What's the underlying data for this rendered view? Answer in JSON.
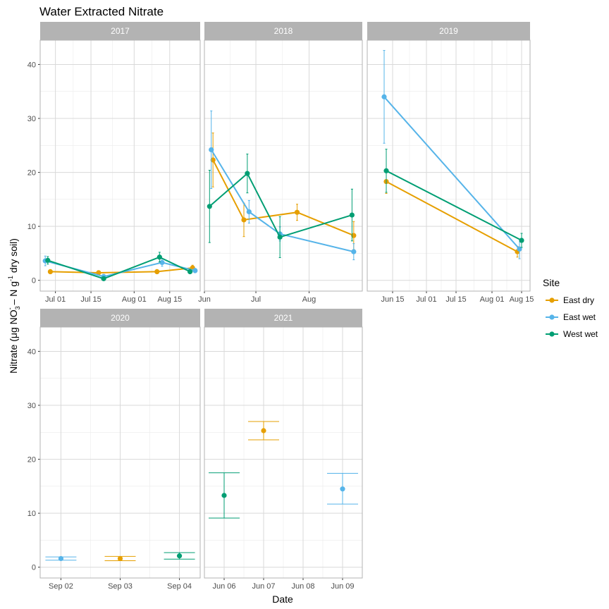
{
  "chart_data": {
    "type": "line",
    "title": "Water Extracted Nitrate",
    "xlabel": "Date",
    "ylabel": {
      "prefix": "Nitrate (",
      "mu": "μ",
      "g_no": "g NO",
      "sub3": "3",
      "supminus": "-",
      "mid": " – N g",
      "supneg1": "-1",
      "suffix": " dry soil)"
    },
    "ylim": [
      -2,
      44.5
    ],
    "yticks": [
      0,
      10,
      20,
      30,
      40
    ],
    "grid": true,
    "legend": {
      "title": "Site",
      "position": "right",
      "entries": [
        {
          "name": "East dry",
          "color": "#E69F00"
        },
        {
          "name": "East wet",
          "color": "#56B4E9"
        },
        {
          "name": "West wet",
          "color": "#009E73"
        }
      ]
    },
    "panels": [
      {
        "label": "2017",
        "xdomain": [
          "2017-06-25",
          "2017-08-27"
        ],
        "xticks": [
          {
            "date": "2017-07-01",
            "label": "Jul 01"
          },
          {
            "date": "2017-07-15",
            "label": "Jul 15"
          },
          {
            "date": "2017-08-01",
            "label": "Aug 01"
          },
          {
            "date": "2017-08-15",
            "label": "Aug 15"
          }
        ],
        "series": [
          {
            "name": "East dry",
            "points": [
              {
                "x": "2017-06-29",
                "y": 1.6,
                "lo": 1.2,
                "hi": 2.0
              },
              {
                "x": "2017-07-18",
                "y": 1.4,
                "lo": 1.0,
                "hi": 1.8
              },
              {
                "x": "2017-08-10",
                "y": 1.6,
                "lo": 1.2,
                "hi": 2.0
              },
              {
                "x": "2017-08-24",
                "y": 2.3,
                "lo": 1.8,
                "hi": 2.8
              }
            ]
          },
          {
            "name": "East wet",
            "points": [
              {
                "x": "2017-06-27",
                "y": 3.6,
                "lo": 2.7,
                "hi": 4.5
              },
              {
                "x": "2017-07-20",
                "y": 0.7,
                "lo": 0.3,
                "hi": 1.1
              },
              {
                "x": "2017-08-12",
                "y": 3.3,
                "lo": 2.6,
                "hi": 4.0
              },
              {
                "x": "2017-08-25",
                "y": 1.8,
                "lo": 1.4,
                "hi": 2.2
              }
            ]
          },
          {
            "name": "West wet",
            "points": [
              {
                "x": "2017-06-28",
                "y": 3.7,
                "lo": 3.0,
                "hi": 4.4
              },
              {
                "x": "2017-07-20",
                "y": 0.3,
                "lo": 0.0,
                "hi": 0.6
              },
              {
                "x": "2017-08-11",
                "y": 4.3,
                "lo": 3.4,
                "hi": 5.2
              },
              {
                "x": "2017-08-23",
                "y": 1.6,
                "lo": 1.2,
                "hi": 2.0
              }
            ]
          }
        ]
      },
      {
        "label": "2018",
        "xdomain": [
          "2018-06-01",
          "2018-09-01"
        ],
        "xticks": [
          {
            "date": "2018-06-01",
            "label": "Jun"
          },
          {
            "date": "2018-07-01",
            "label": "Jul"
          },
          {
            "date": "2018-08-01",
            "label": "Aug"
          }
        ],
        "series": [
          {
            "name": "East dry",
            "points": [
              {
                "x": "2018-06-06",
                "y": 22.3,
                "lo": 17.3,
                "hi": 27.3
              },
              {
                "x": "2018-06-24",
                "y": 11.2,
                "lo": 8.1,
                "hi": 14.3
              },
              {
                "x": "2018-07-25",
                "y": 12.6,
                "lo": 11.1,
                "hi": 14.1
              },
              {
                "x": "2018-08-27",
                "y": 8.3,
                "lo": 5.7,
                "hi": 10.9
              }
            ]
          },
          {
            "name": "East wet",
            "points": [
              {
                "x": "2018-06-05",
                "y": 24.2,
                "lo": 17.0,
                "hi": 31.4
              },
              {
                "x": "2018-06-27",
                "y": 12.7,
                "lo": 10.6,
                "hi": 14.8
              },
              {
                "x": "2018-07-15",
                "y": 8.6,
                "lo": 7.3,
                "hi": 9.9
              },
              {
                "x": "2018-08-27",
                "y": 5.3,
                "lo": 3.8,
                "hi": 6.8
              }
            ]
          },
          {
            "name": "West wet",
            "points": [
              {
                "x": "2018-06-04",
                "y": 13.7,
                "lo": 7.0,
                "hi": 20.4
              },
              {
                "x": "2018-06-26",
                "y": 19.8,
                "lo": 16.2,
                "hi": 23.4
              },
              {
                "x": "2018-07-15",
                "y": 8.0,
                "lo": 4.2,
                "hi": 11.8
              },
              {
                "x": "2018-08-26",
                "y": 12.1,
                "lo": 7.3,
                "hi": 16.9
              }
            ]
          }
        ]
      },
      {
        "label": "2019",
        "xdomain": [
          "2019-06-03",
          "2019-08-19"
        ],
        "xticks": [
          {
            "date": "2019-06-15",
            "label": "Jun 15"
          },
          {
            "date": "2019-07-01",
            "label": "Jul 01"
          },
          {
            "date": "2019-07-15",
            "label": "Jul 15"
          },
          {
            "date": "2019-08-01",
            "label": "Aug 01"
          },
          {
            "date": "2019-08-15",
            "label": "Aug 15"
          }
        ],
        "series": [
          {
            "name": "East dry",
            "points": [
              {
                "x": "2019-06-12",
                "y": 18.3,
                "lo": 16.1,
                "hi": 20.5
              },
              {
                "x": "2019-08-13",
                "y": 5.3,
                "lo": 4.3,
                "hi": 6.3
              }
            ]
          },
          {
            "name": "East wet",
            "points": [
              {
                "x": "2019-06-11",
                "y": 34.0,
                "lo": 25.4,
                "hi": 42.6
              },
              {
                "x": "2019-08-14",
                "y": 5.8,
                "lo": 4.0,
                "hi": 7.6
              }
            ]
          },
          {
            "name": "West wet",
            "points": [
              {
                "x": "2019-06-12",
                "y": 20.3,
                "lo": 16.3,
                "hi": 24.3
              },
              {
                "x": "2019-08-15",
                "y": 7.4,
                "lo": 6.1,
                "hi": 8.7
              }
            ]
          }
        ]
      },
      {
        "label": "2020",
        "xdomain": [
          "2020-09-01 15:36",
          "2020-09-04 08:24"
        ],
        "xticks": [
          {
            "date": "2020-09-02",
            "label": "Sep 02"
          },
          {
            "date": "2020-09-03",
            "label": "Sep 03"
          },
          {
            "date": "2020-09-04",
            "label": "Sep 04"
          }
        ],
        "series": [
          {
            "name": "East dry",
            "points": [
              {
                "x": "2020-09-03",
                "y": 1.6,
                "lo": 1.2,
                "hi": 2.0
              }
            ]
          },
          {
            "name": "East wet",
            "points": [
              {
                "x": "2020-09-02",
                "y": 1.6,
                "lo": 1.3,
                "hi": 1.9
              }
            ]
          },
          {
            "name": "West wet",
            "points": [
              {
                "x": "2020-09-04",
                "y": 2.1,
                "lo": 1.5,
                "hi": 2.7
              }
            ]
          }
        ]
      },
      {
        "label": "2021",
        "xdomain": [
          "2021-06-05 12:00",
          "2021-06-09 12:00"
        ],
        "xticks": [
          {
            "date": "2021-06-06",
            "label": "Jun 06"
          },
          {
            "date": "2021-06-07",
            "label": "Jun 07"
          },
          {
            "date": "2021-06-08",
            "label": "Jun 08"
          },
          {
            "date": "2021-06-09",
            "label": "Jun 09"
          }
        ],
        "series": [
          {
            "name": "East dry",
            "points": [
              {
                "x": "2021-06-07",
                "y": 25.3,
                "lo": 23.6,
                "hi": 27.0
              }
            ]
          },
          {
            "name": "East wet",
            "points": [
              {
                "x": "2021-06-09",
                "y": 14.5,
                "lo": 11.7,
                "hi": 17.4
              }
            ]
          },
          {
            "name": "West wet",
            "points": [
              {
                "x": "2021-06-06",
                "y": 13.3,
                "lo": 9.1,
                "hi": 17.5
              }
            ]
          }
        ]
      }
    ]
  }
}
